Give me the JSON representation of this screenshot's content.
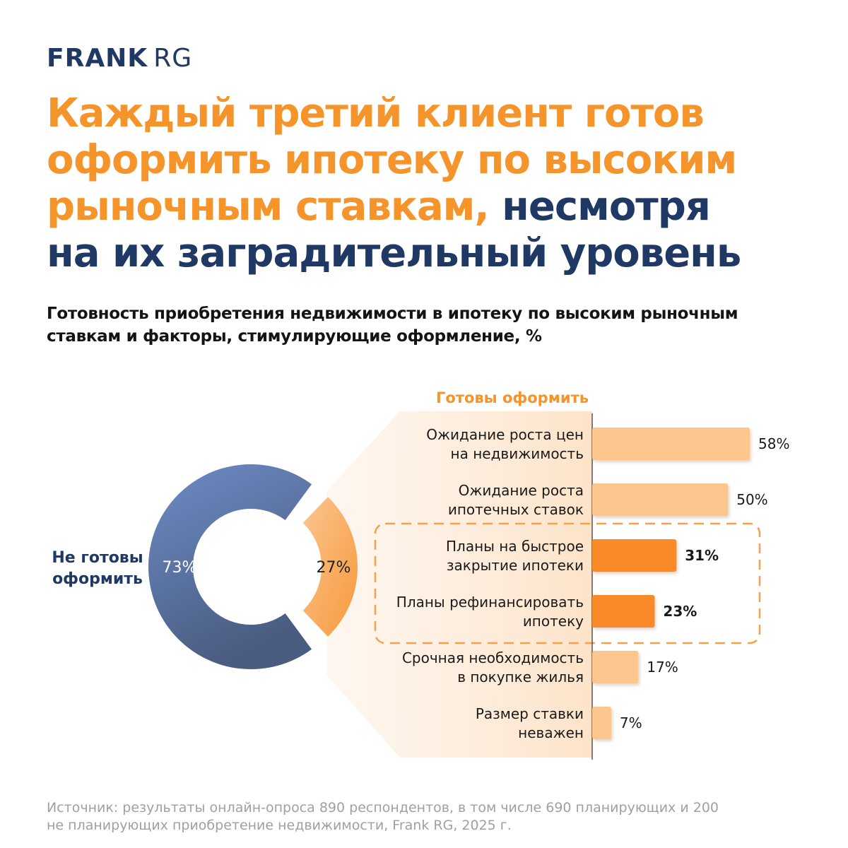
{
  "brand": {
    "bold": "FRANK",
    "regular": "RG"
  },
  "headline": {
    "line1": "Каждый третий клиент готов",
    "line2": "оформить ипотеку по высоким",
    "line3_orange": "рыночным ставкам,",
    "line3_navy": "несмотря",
    "line4": "на их заградительный уровень"
  },
  "subtitle": {
    "line1": "Готовность приобретения недвижимости в ипотеку по высоким рыночным",
    "line2": "ставкам и факторы, стимулирующие оформление, %"
  },
  "colors": {
    "navy": "#1f3864",
    "orange": "#f5942a",
    "donut_blue": "#5b76a8",
    "bar_light": "#fcc78e",
    "bar_dark": "#f88a2c"
  },
  "chart_data": [
    {
      "type": "pie",
      "labels": [
        "Не готовы оформить",
        "Готовы оформить"
      ],
      "values": [
        73,
        27
      ],
      "value_labels": [
        "73%",
        "27%"
      ],
      "side_label_lines": [
        "Не готовы",
        "оформить"
      ]
    },
    {
      "type": "bar",
      "orientation": "horizontal",
      "title": "Готовы оформить",
      "categories": [
        [
          "Ожидание роста цен",
          "на недвижимость"
        ],
        [
          "Ожидание роста",
          "ипотечных ставок"
        ],
        [
          "Планы на быстрое",
          "закрытие ипотеки"
        ],
        [
          "Планы рефинансировать",
          "ипотеку"
        ],
        [
          "Срочная необходимость",
          "в покупке жилья"
        ],
        [
          "Размер ставки",
          "неважен"
        ]
      ],
      "values": [
        58,
        50,
        31,
        23,
        17,
        7
      ],
      "value_labels": [
        "58%",
        "50%",
        "31%",
        "23%",
        "17%",
        "7%"
      ],
      "highlighted": [
        false,
        false,
        true,
        true,
        false,
        false
      ]
    }
  ],
  "source": {
    "line1": "Источник: результаты онлайн-опроса 890 респондентов, в том числе 690 планирующих и 200",
    "line2": "не планирующих приобретение недвижимости, Frank RG, 2025 г."
  }
}
